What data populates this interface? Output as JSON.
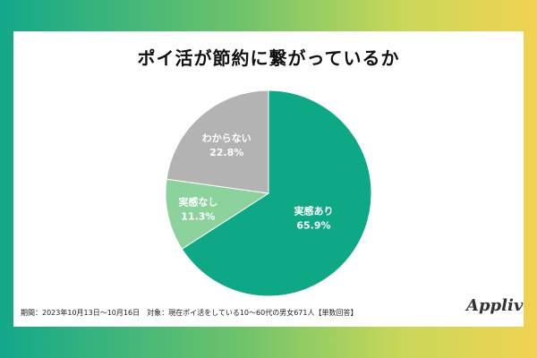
{
  "title": "ポイ活が節約に繋がっているか",
  "footnote": "期間：2023年10月13日〜10月16日　対象：現在ポイ活をしている10〜60代の男女671人【単数回答】",
  "brand": "Appliv",
  "colors": {
    "slice_1": "#0ea887",
    "slice_2": "#8bd29c",
    "slice_3": "#b3b3b3",
    "label_text": "#ffffff"
  },
  "chart_data": {
    "type": "pie",
    "title": "ポイ活が節約に繋がっているか",
    "slices": [
      {
        "label": "実感あり",
        "value": 65.9,
        "display": "65.9%"
      },
      {
        "label": "実感なし",
        "value": 11.3,
        "display": "11.3%"
      },
      {
        "label": "わからない",
        "value": 22.8,
        "display": "22.8%"
      }
    ],
    "start": "12 o'clock",
    "direction": "clockwise",
    "legend": "none (labels inside slices)"
  }
}
